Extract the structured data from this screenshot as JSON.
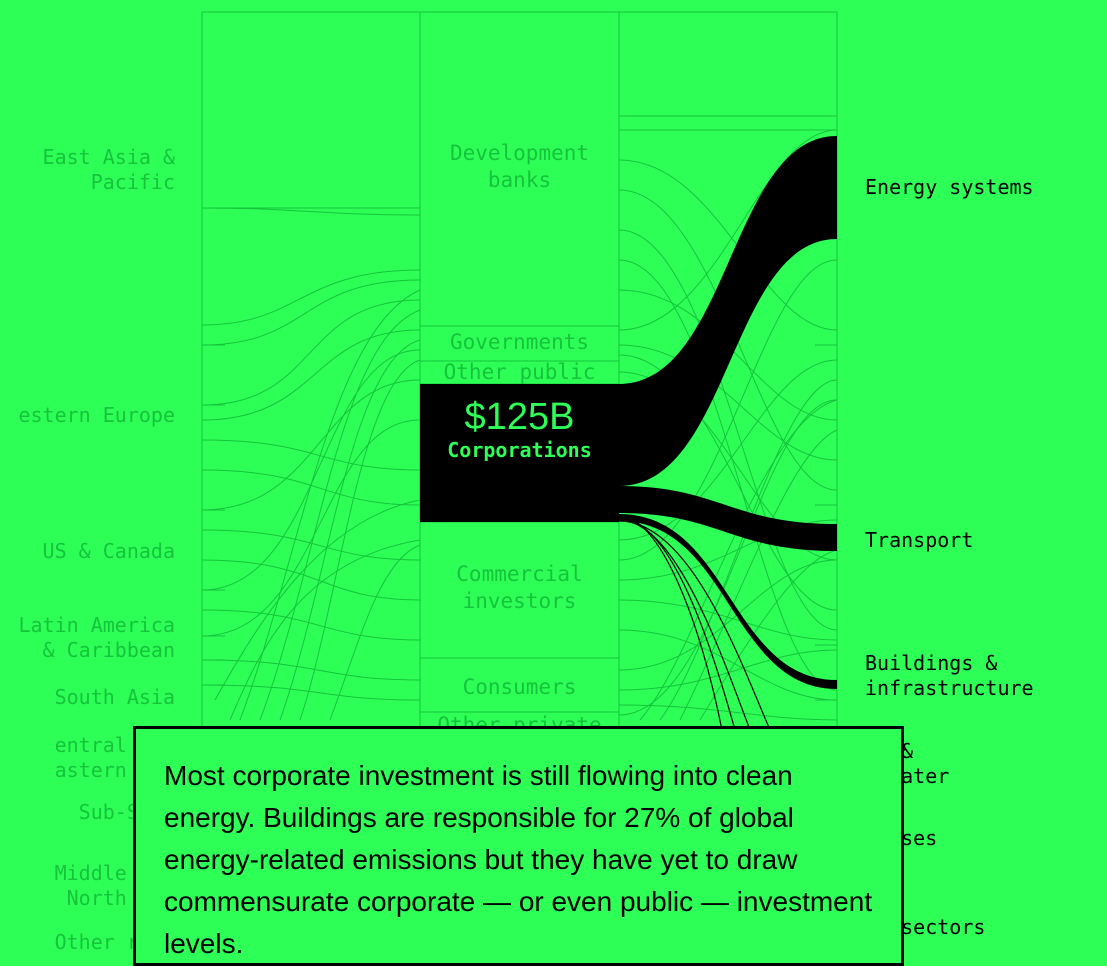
{
  "chart_data": {
    "type": "sankey",
    "columns": [
      "region",
      "source",
      "use"
    ],
    "regions": [
      {
        "label": "East Asia &\nPacific"
      },
      {
        "label": "estern Europe"
      },
      {
        "label": "US & Canada"
      },
      {
        "label": "Latin America\n& Caribbean"
      },
      {
        "label": "South Asia"
      },
      {
        "label": "entral Asi\nastern Eur"
      },
      {
        "label": "Sub-Saha\nAfr"
      },
      {
        "label": "Middle Eas\nNorth Afr"
      },
      {
        "label": "Other regi"
      }
    ],
    "sources": [
      {
        "label": "Development\nbanks"
      },
      {
        "label": "Governments"
      },
      {
        "label": "Other public"
      },
      {
        "label": "Corporations"
      },
      {
        "label": "Commercial\ninvestors"
      },
      {
        "label": "Consumers"
      },
      {
        "label": "Other private"
      }
    ],
    "uses": [
      {
        "label": "Energy systems"
      },
      {
        "label": "Transport"
      },
      {
        "label": "Buildings &\ninfrastructure"
      },
      {
        "label": "er &\ntewater"
      },
      {
        "label": "d uses"
      },
      {
        "label": "er sectors"
      }
    ],
    "highlight": {
      "source": "Corporations",
      "amount": "$125B",
      "flows": [
        {
          "to": "Energy systems",
          "share": "largest"
        },
        {
          "to": "Transport",
          "share": "medium"
        },
        {
          "to": "Buildings & infrastructure",
          "share": "small"
        }
      ]
    }
  },
  "caption": "Most corporate investment is still flowing into clean energy. Buildings are responsible for 27% of global energy-related emissions but they have yet to draw commensurate corporate — or even public — investment levels.",
  "colors": {
    "background": "#2dff57",
    "highlight": "#000000",
    "muted": "#15c43b"
  }
}
